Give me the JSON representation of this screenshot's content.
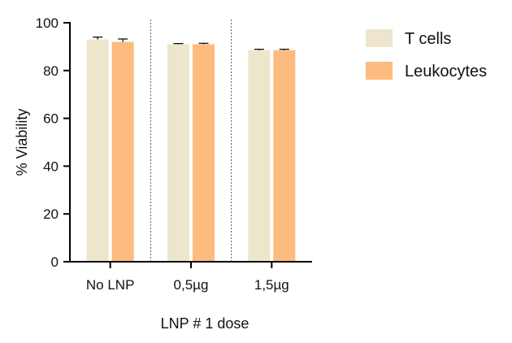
{
  "chart_data": {
    "type": "bar",
    "xlabel": "LNP # 1 dose",
    "ylabel": "% Viability",
    "ylim": [
      0,
      100
    ],
    "yticks": [
      0,
      20,
      40,
      60,
      80,
      100
    ],
    "categories": [
      "No LNP",
      "0,5µg",
      "1,5µg"
    ],
    "series": [
      {
        "name": "T cells",
        "color": "#ede6cc",
        "values": [
          93,
          91,
          88.5
        ],
        "errors": [
          1.0,
          0.3,
          0.4
        ]
      },
      {
        "name": "Leukocytes",
        "color": "#fdbb7f",
        "values": [
          92,
          91,
          88.5
        ],
        "errors": [
          1.2,
          0.4,
          0.4
        ]
      }
    ],
    "group_separators": "dotted",
    "legend_position": "top-right",
    "grid": false
  }
}
